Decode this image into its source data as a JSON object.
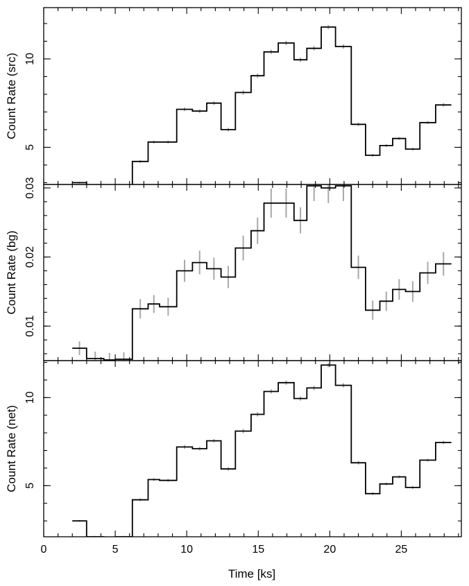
{
  "chart_data": [
    {
      "type": "line",
      "step": true,
      "ylabel": "Count Rate (src)",
      "xlabel": "",
      "xlim": [
        0,
        29.2
      ],
      "ylim": [
        2.9,
        12.9
      ],
      "yticks": [
        5,
        10
      ],
      "ytick_labels": [
        "5",
        "10"
      ],
      "bin_edges": [
        2.0,
        3.0,
        4.2,
        5.0,
        6.2,
        7.3,
        8.1,
        9.3,
        10.4,
        11.4,
        12.4,
        13.4,
        14.5,
        15.4,
        16.4,
        17.5,
        18.4,
        19.4,
        20.4,
        21.5,
        22.5,
        23.5,
        24.4,
        25.3,
        26.3,
        27.4,
        28.5
      ],
      "values": [
        3.0,
        2.05,
        2.0,
        2.05,
        4.2,
        5.3,
        5.3,
        7.15,
        7.05,
        7.5,
        6.0,
        8.1,
        9.05,
        10.4,
        10.9,
        9.95,
        10.6,
        11.8,
        10.7,
        6.3,
        4.55,
        5.1,
        5.5,
        4.9,
        6.4,
        7.4
      ],
      "errors": [
        0.05,
        0.05,
        0.05,
        0.05,
        0.08,
        0.08,
        0.08,
        0.1,
        0.1,
        0.1,
        0.1,
        0.12,
        0.12,
        0.12,
        0.12,
        0.12,
        0.12,
        0.12,
        0.12,
        0.1,
        0.08,
        0.08,
        0.08,
        0.08,
        0.08,
        0.1
      ]
    },
    {
      "type": "line",
      "step": true,
      "ylabel": "Count Rate (bg)",
      "xlabel": "",
      "xlim": [
        0,
        29.2
      ],
      "ylim": [
        0.005,
        0.0305
      ],
      "yticks": [
        0.01,
        0.02,
        0.03
      ],
      "ytick_labels": [
        "0.01",
        "0.02",
        "0.03"
      ],
      "bin_edges": [
        2.0,
        3.0,
        4.2,
        5.0,
        6.2,
        7.3,
        8.1,
        9.3,
        10.4,
        11.4,
        12.4,
        13.4,
        14.5,
        15.4,
        16.4,
        17.5,
        18.4,
        19.4,
        20.4,
        21.5,
        22.5,
        23.5,
        24.4,
        25.3,
        26.3,
        27.4,
        28.5
      ],
      "values": [
        0.0068,
        0.0053,
        0.0051,
        0.0052,
        0.0125,
        0.0132,
        0.0128,
        0.018,
        0.0192,
        0.0183,
        0.0171,
        0.0213,
        0.0238,
        0.0278,
        0.0278,
        0.0253,
        0.0303,
        0.03,
        0.0303,
        0.0185,
        0.0123,
        0.0136,
        0.0153,
        0.015,
        0.0177,
        0.019
      ],
      "errors": [
        0.001,
        0.001,
        0.001,
        0.001,
        0.0014,
        0.0013,
        0.0013,
        0.0016,
        0.0017,
        0.0016,
        0.0016,
        0.0018,
        0.0019,
        0.0021,
        0.0021,
        0.0019,
        0.0022,
        0.0022,
        0.0022,
        0.0017,
        0.0014,
        0.0014,
        0.0015,
        0.0015,
        0.0016,
        0.0017
      ]
    },
    {
      "type": "line",
      "step": true,
      "ylabel": "Count Rate (net)",
      "xlabel": "Time [ks]",
      "xlim": [
        0,
        29.2
      ],
      "ylim": [
        2.1,
        12.1
      ],
      "yticks": [
        5,
        10
      ],
      "ytick_labels": [
        "5",
        "10"
      ],
      "xticks": [
        0,
        5,
        10,
        15,
        20,
        25
      ],
      "xtick_labels": [
        "0",
        "5",
        "10",
        "15",
        "20",
        "25"
      ],
      "bin_edges": [
        2.0,
        3.0,
        4.2,
        5.0,
        6.2,
        7.3,
        8.1,
        9.3,
        10.4,
        11.4,
        12.4,
        13.4,
        14.5,
        15.4,
        16.4,
        17.5,
        18.4,
        19.4,
        20.4,
        21.5,
        22.5,
        23.5,
        24.4,
        25.3,
        26.3,
        27.4,
        28.5
      ],
      "values": [
        3.0,
        2.1,
        2.05,
        2.1,
        4.2,
        5.35,
        5.3,
        7.2,
        7.1,
        7.55,
        5.95,
        8.1,
        9.05,
        10.35,
        10.85,
        9.95,
        10.55,
        11.85,
        10.7,
        6.3,
        4.55,
        5.1,
        5.5,
        4.9,
        6.45,
        7.45
      ],
      "errors": [
        0.05,
        0.05,
        0.05,
        0.05,
        0.08,
        0.08,
        0.08,
        0.1,
        0.1,
        0.1,
        0.1,
        0.12,
        0.12,
        0.12,
        0.12,
        0.12,
        0.12,
        0.12,
        0.12,
        0.1,
        0.08,
        0.08,
        0.08,
        0.08,
        0.08,
        0.1
      ]
    }
  ]
}
